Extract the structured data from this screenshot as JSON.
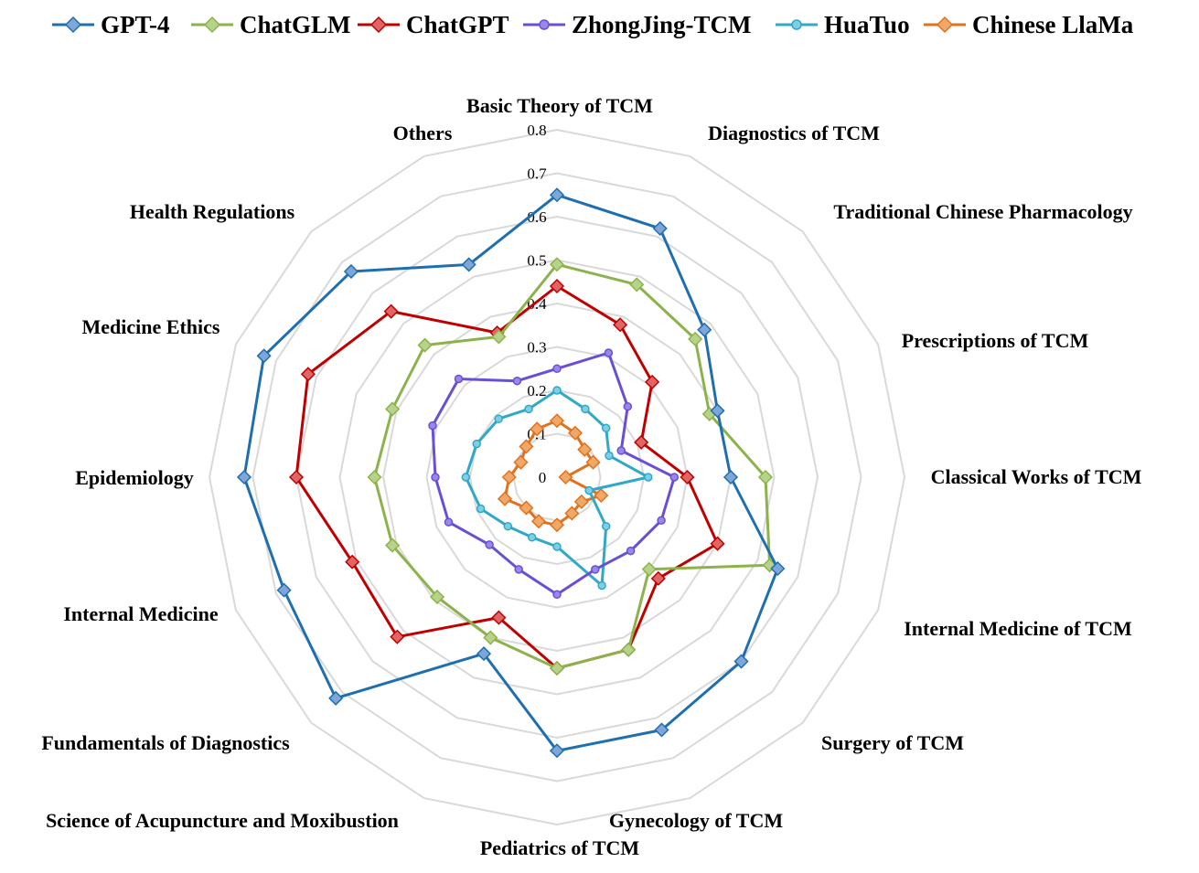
{
  "chart_data": {
    "type": "radar",
    "categories": [
      "Basic Theory of TCM",
      "Diagnostics of TCM",
      "Traditional Chinese Pharmacology",
      "Prescriptions of TCM",
      "Classical Works of TCM",
      "Internal Medicine of TCM",
      "Surgery of TCM",
      "Gynecology of TCM",
      "Pediatrics of TCM",
      "Science of Acupuncture and Moxibustion",
      "Fundamentals of Diagnostics",
      "Internal Medicine",
      "Epidemiology",
      "Medicine Ethics",
      "Health Regulations",
      "Others"
    ],
    "rlim": [
      0,
      0.8
    ],
    "ticks": [
      "0",
      "0.1",
      "0.2",
      "0.3",
      "0.4",
      "0.5",
      "0.6",
      "0.7",
      "0.8"
    ],
    "legend_position": "top",
    "grid": true,
    "series": [
      {
        "name": "GPT-4",
        "color": "#1F6FB0",
        "marker_fill": "#7EA6D8",
        "values": [
          0.65,
          0.62,
          0.48,
          0.4,
          0.4,
          0.55,
          0.6,
          0.63,
          0.63,
          0.44,
          0.72,
          0.68,
          0.72,
          0.73,
          0.67,
          0.53
        ]
      },
      {
        "name": "ChatGLM",
        "color": "#8CB34B",
        "marker_fill": "#B7D38A",
        "values": [
          0.49,
          0.48,
          0.45,
          0.38,
          0.48,
          0.53,
          0.3,
          0.43,
          0.44,
          0.4,
          0.39,
          0.41,
          0.42,
          0.41,
          0.43,
          0.35
        ]
      },
      {
        "name": "ChatGPT",
        "color": "#C00000",
        "marker_fill": "#E06666",
        "values": [
          0.44,
          0.38,
          0.31,
          0.21,
          0.3,
          0.4,
          0.33,
          0.43,
          0.44,
          0.35,
          0.52,
          0.51,
          0.6,
          0.62,
          0.54,
          0.36
        ]
      },
      {
        "name": "ZhongJing-TCM",
        "color": "#6A4FD6",
        "marker_fill": "#9B87EA",
        "values": [
          0.25,
          0.31,
          0.23,
          0.16,
          0.27,
          0.26,
          0.24,
          0.23,
          0.27,
          0.23,
          0.22,
          0.27,
          0.28,
          0.31,
          0.32,
          0.24
        ]
      },
      {
        "name": "HuaTuo",
        "color": "#30A8C8",
        "marker_fill": "#7FCFE4",
        "values": [
          0.2,
          0.17,
          0.16,
          0.13,
          0.21,
          0.08,
          0.16,
          0.27,
          0.16,
          0.15,
          0.16,
          0.19,
          0.21,
          0.2,
          0.19,
          0.17
        ]
      },
      {
        "name": "Chinese LlaMa",
        "color": "#E2711D",
        "marker_fill": "#F0A868",
        "values": [
          0.13,
          0.11,
          0.09,
          0.09,
          0.02,
          0.11,
          0.08,
          0.09,
          0.11,
          0.11,
          0.1,
          0.13,
          0.11,
          0.09,
          0.1,
          0.12
        ]
      }
    ]
  }
}
